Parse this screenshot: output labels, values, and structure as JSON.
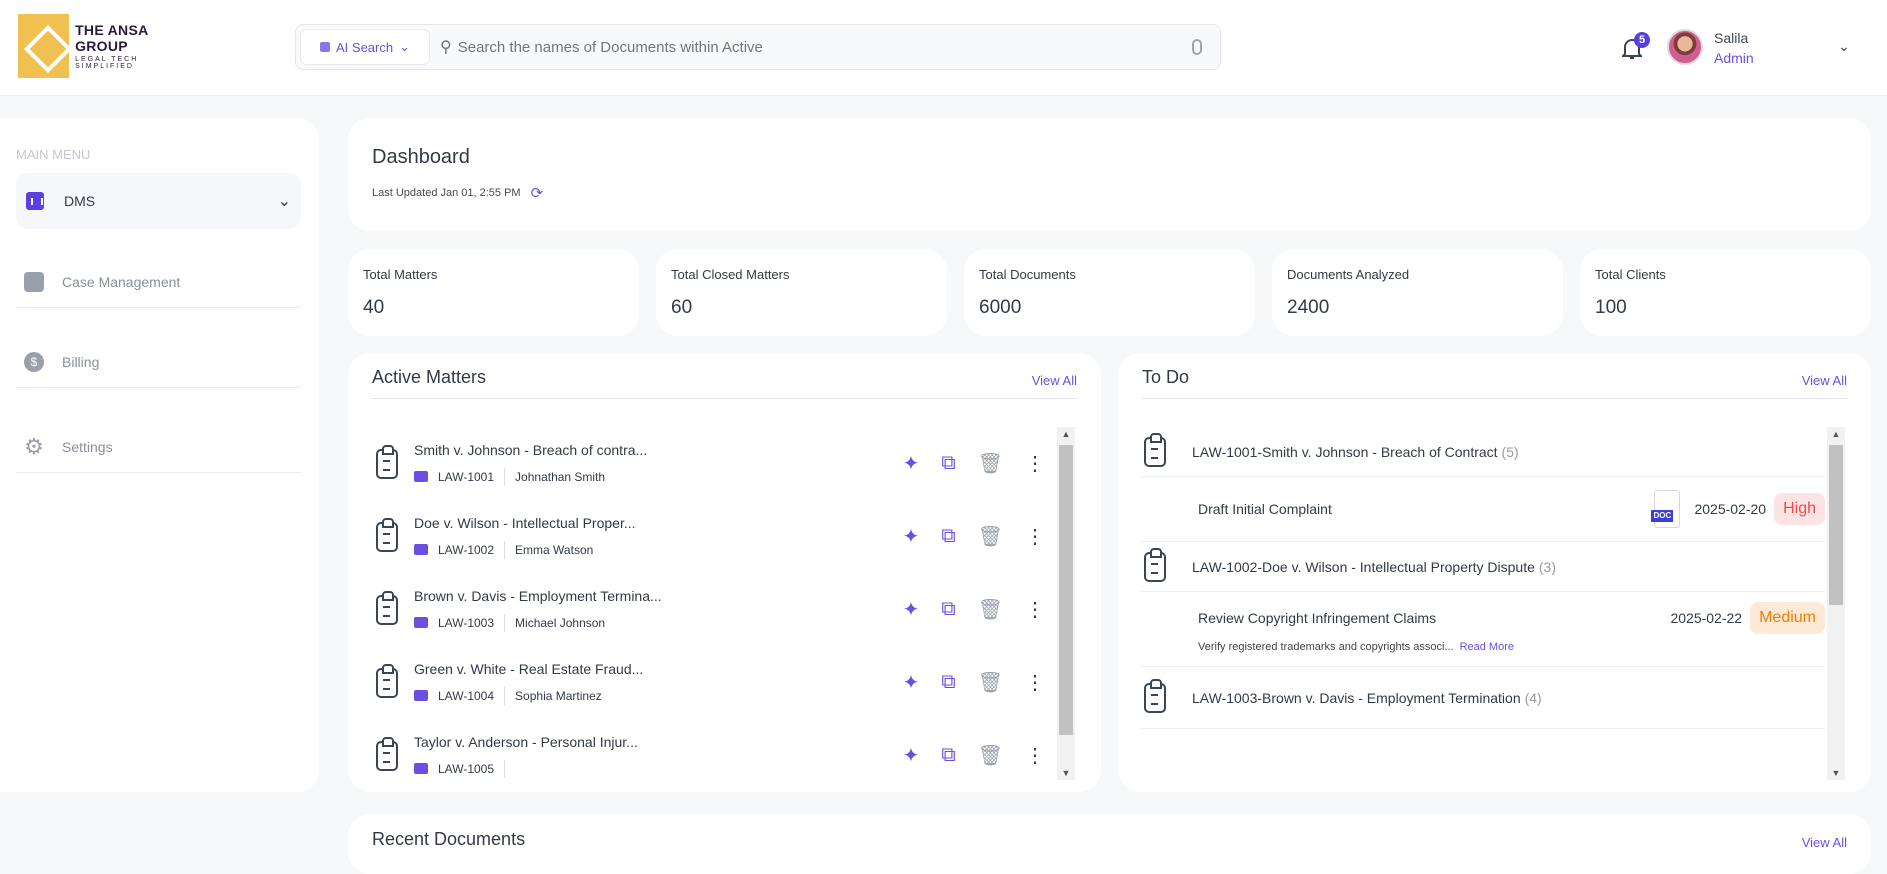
{
  "brand": {
    "name": "THE ANSA GROUP",
    "tagline": "LEGAL TECH SIMPLIFIED",
    "color": "#f0c050"
  },
  "search": {
    "mode": "AI Search",
    "placeholder": "Search the names of Documents within Active"
  },
  "notifications": {
    "count": "5"
  },
  "user": {
    "name": "Salila",
    "role": "Admin"
  },
  "sidebar": {
    "heading": "MAIN MENU",
    "items": [
      {
        "label": "DMS",
        "icon": "bar-chart-icon"
      },
      {
        "label": "Case Management",
        "icon": "briefcase-icon"
      },
      {
        "label": "Billing",
        "icon": "dollar-icon"
      },
      {
        "label": "Settings",
        "icon": "gear-icon"
      }
    ]
  },
  "dashboard": {
    "title": "Dashboard",
    "last_updated": "Last Updated Jan 01, 2:55 PM"
  },
  "stats": [
    {
      "label": "Total Matters",
      "value": "40"
    },
    {
      "label": "Total Closed Matters",
      "value": "60"
    },
    {
      "label": "Total Documents",
      "value": "6000"
    },
    {
      "label": "Documents Analyzed",
      "value": "2400"
    },
    {
      "label": "Total Clients",
      "value": "100"
    }
  ],
  "active_matters": {
    "title": "Active Matters",
    "view_all": "View All",
    "items": [
      {
        "title": "Smith v. Johnson - Breach of contra...",
        "id": "LAW-1001",
        "client": "Johnathan Smith"
      },
      {
        "title": "Doe v. Wilson - Intellectual Proper...",
        "id": "LAW-1002",
        "client": "Emma Watson"
      },
      {
        "title": "Brown v. Davis - Employment Termina...",
        "id": "LAW-1003",
        "client": "Michael Johnson"
      },
      {
        "title": "Green v. White - Real Estate Fraud...",
        "id": "LAW-1004",
        "client": "Sophia Martinez"
      },
      {
        "title": "Taylor v. Anderson - Personal Injur...",
        "id": "LAW-1005",
        "client": ""
      }
    ]
  },
  "todo": {
    "title": "To Do",
    "view_all": "View All",
    "groups": [
      {
        "title": "LAW-1001-Smith v. Johnson - Breach of Contract",
        "count": "(5)",
        "task": {
          "name": "Draft Initial Complaint",
          "file": "DOC",
          "date": "2025-02-20",
          "priority": "High"
        }
      },
      {
        "title": "LAW-1002-Doe v. Wilson - Intellectual Property Dispute",
        "count": "(3)",
        "task": {
          "name": "Review Copyright Infringement Claims",
          "date": "2025-02-22",
          "priority": "Medium",
          "desc": "Verify registered trademarks and copyrights associ...",
          "read_more": "Read More"
        }
      },
      {
        "title": "LAW-1003-Brown v. Davis - Employment Termination",
        "count": "(4)"
      }
    ]
  },
  "recent_documents": {
    "title": "Recent Documents",
    "view_all": "View All"
  }
}
